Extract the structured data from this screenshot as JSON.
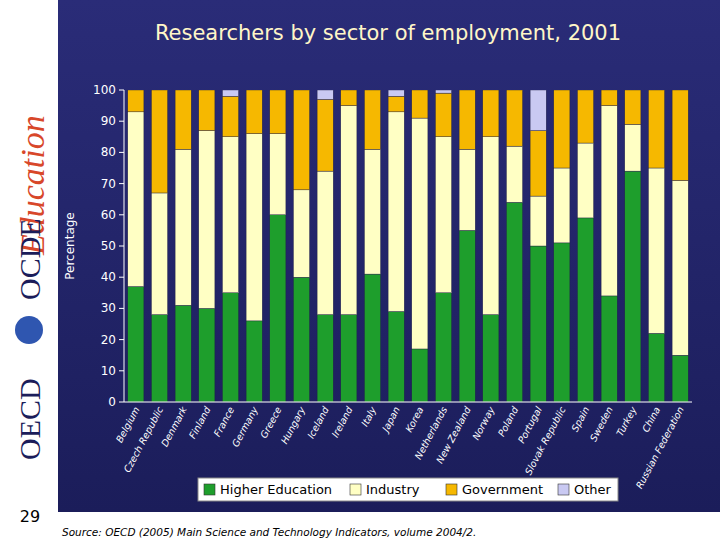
{
  "chart_data": {
    "type": "bar",
    "stacked": true,
    "title": "Researchers by sector of employment, 2001",
    "y_label": "Percentage",
    "categories": [
      "Belgium",
      "Czech Republic",
      "Denmark",
      "Finland",
      "France",
      "Germany",
      "Greece",
      "Hungary",
      "Iceland",
      "Ireland",
      "Italy",
      "Japan",
      "Korea",
      "Netherlands",
      "New Zealand",
      "Norway",
      "Poland",
      "Portugal",
      "Slovak Republic",
      "Spain",
      "Sweden",
      "Turkey",
      "China",
      "Russian Federation"
    ],
    "series": [
      {
        "name": "Higher Education",
        "color": "#1e9e2c",
        "values": [
          37,
          28,
          31,
          30,
          35,
          26,
          60,
          40,
          28,
          28,
          41,
          29,
          17,
          35,
          55,
          28,
          64,
          50,
          51,
          59,
          34,
          74,
          22,
          15
        ]
      },
      {
        "name": "Industry",
        "color": "#ffffc4",
        "values": [
          56,
          39,
          50,
          57,
          50,
          60,
          26,
          28,
          46,
          67,
          40,
          64,
          74,
          50,
          26,
          57,
          18,
          16,
          24,
          24,
          61,
          15,
          53,
          56
        ]
      },
      {
        "name": "Government",
        "color": "#f6b800",
        "values": [
          7,
          33,
          19,
          13,
          13,
          14,
          14,
          32,
          23,
          5,
          19,
          5,
          9,
          14,
          19,
          15,
          18,
          21,
          25,
          17,
          5,
          11,
          25,
          29
        ]
      },
      {
        "name": "Other",
        "color": "#c9c9f2",
        "values": [
          0,
          0,
          0,
          0,
          2,
          0,
          0,
          0,
          3,
          0,
          0,
          2,
          0,
          1,
          0,
          0,
          0,
          13,
          0,
          0,
          0,
          0,
          0,
          0
        ]
      }
    ],
    "ylim": [
      0,
      100
    ],
    "yticks": [
      0,
      10,
      20,
      30,
      40,
      50,
      60,
      70,
      80,
      90,
      100
    ],
    "grid": false,
    "legend": "bottom",
    "source": "Source: OECD (2005) Main Science and Technology Indicators, volume 2004/2.",
    "page_number": "29",
    "branding": [
      "Education",
      "OCDE",
      "OECD"
    ]
  }
}
